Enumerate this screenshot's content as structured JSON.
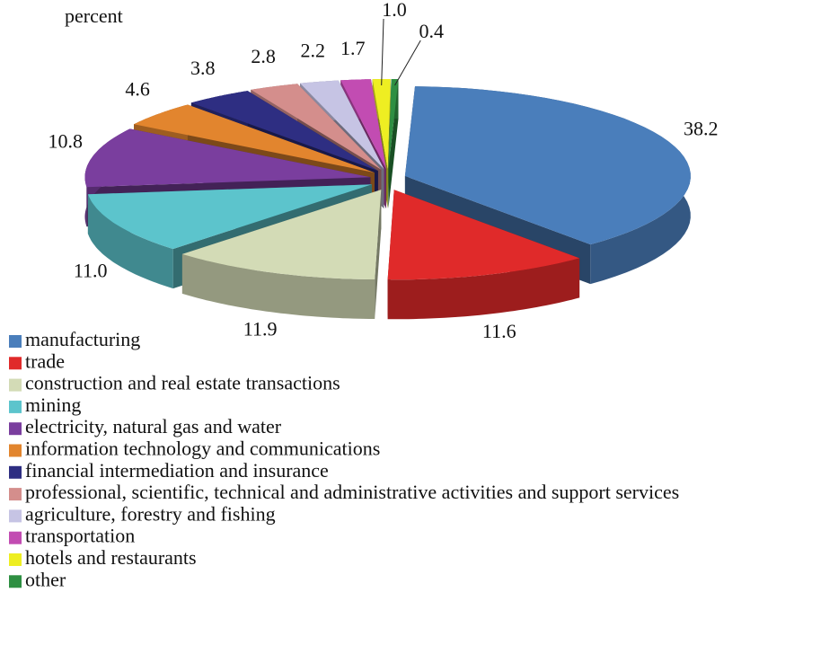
{
  "chart_data": {
    "type": "pie3d",
    "title": "percent",
    "categories": [
      "manufacturing",
      "trade",
      "construction and real estate transactions",
      "mining",
      "electricity, natural gas and water",
      "information technology and communications",
      "financial intermediation and insurance",
      "professional, scientific, technical and administrative activities and support services",
      "agriculture, forestry and fishing",
      "transportation",
      "hotels and restaurants",
      "other"
    ],
    "values": [
      38.2,
      11.6,
      11.9,
      11.0,
      10.8,
      4.6,
      3.8,
      2.8,
      2.2,
      1.7,
      1.0,
      0.4
    ],
    "value_labels": [
      "38.2",
      "11.6",
      "11.9",
      "11.0",
      "10.8",
      "4.6",
      "3.8",
      "2.8",
      "2.2",
      "1.7",
      "1.0",
      "0.4"
    ],
    "colors": [
      "#4a7ebb",
      "#e02a2a",
      "#d3dbb6",
      "#5cc4cc",
      "#7a3e9e",
      "#e2852e",
      "#2e2e82",
      "#d48e8c",
      "#c6c4e4",
      "#c24cb2",
      "#eeee22",
      "#2e8f42"
    ]
  }
}
